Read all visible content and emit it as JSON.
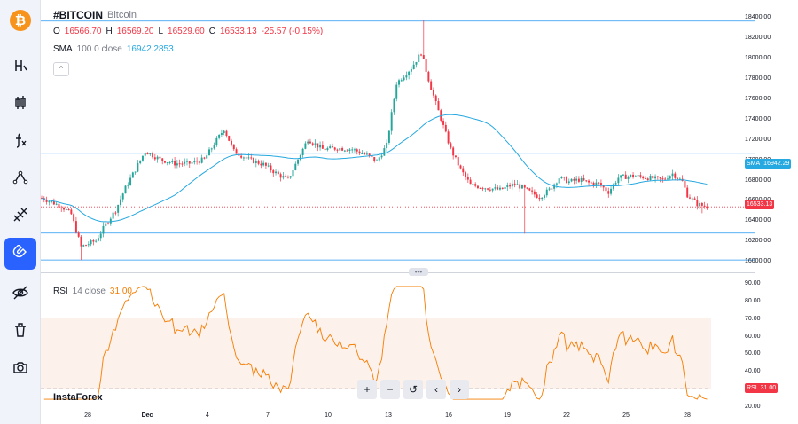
{
  "symbol": {
    "ticker": "#BITCOIN",
    "name": "Bitcoin",
    "logo_glyph": "₿",
    "open_label": "O",
    "open": "16566.70",
    "high_label": "H",
    "high": "16569.20",
    "low_label": "L",
    "low": "16529.60",
    "close_label": "C",
    "close": "16533.13",
    "change": "-25.57 (-0.15%)"
  },
  "sma": {
    "name": "SMA",
    "params": "100 0 close",
    "value": "16942.2853",
    "tag_label": "SMA",
    "tag_value": "16942.29",
    "color": "#26a8e0"
  },
  "last_price": {
    "value": "16533.13",
    "color": "#f23645"
  },
  "price_axis": [
    "18400.00",
    "18200.00",
    "18000.00",
    "17800.00",
    "17600.00",
    "17400.00",
    "17200.00",
    "17000.00",
    "16800.00",
    "16600.00",
    "16400.00",
    "16200.00",
    "16000.00"
  ],
  "rsi": {
    "name": "RSI",
    "params": "14 close",
    "value": "31.00",
    "tag_label": "RSI",
    "tag_value": "31.00",
    "color": "#f57c00",
    "axis": [
      "90.00",
      "80.00",
      "70.00",
      "60.00",
      "50.00",
      "40.00",
      "30.00",
      "20.00"
    ]
  },
  "time_axis": [
    "28",
    "Dec",
    "4",
    "7",
    "10",
    "13",
    "16",
    "19",
    "22",
    "25",
    "28"
  ],
  "toolbar": {
    "tools": [
      {
        "name": "text-tool-icon"
      },
      {
        "name": "candle-type-icon"
      },
      {
        "name": "indicators-fx-icon"
      },
      {
        "name": "trendline-icon"
      },
      {
        "name": "fib-tool-icon"
      },
      {
        "name": "magnet-icon"
      },
      {
        "name": "hide-drawings-icon"
      },
      {
        "name": "clear-drawings-icon"
      },
      {
        "name": "screenshot-icon"
      }
    ]
  },
  "nav": {
    "zoom_in": "+",
    "zoom_out": "−",
    "reset": "↺",
    "scroll_left": "‹",
    "scroll_right": "›"
  },
  "watermark": "InstaForex",
  "colors": {
    "up": "#26a69a",
    "down": "#f23645",
    "accent": "#2962ff",
    "level_line": "#2196f3"
  },
  "chart_data": {
    "type": "candlestick",
    "price_levels": [
      18360,
      17060,
      16275,
      16010
    ],
    "ylim": [
      15950,
      18480
    ],
    "rsi_levels": [
      70,
      30
    ],
    "rsi_ylim": [
      18,
      92
    ]
  }
}
